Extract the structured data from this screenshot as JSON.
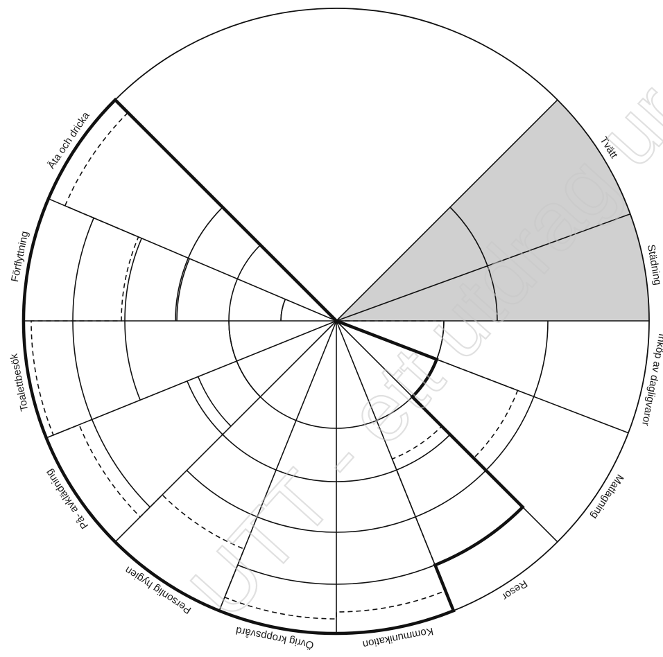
{
  "diagram": {
    "sectors": [
      {
        "id": "tvatt",
        "label": "Tvätt"
      },
      {
        "id": "stadning",
        "label": "Städning"
      },
      {
        "id": "inkop",
        "label": "Inköp av dagligvaror"
      },
      {
        "id": "matlagning",
        "label": "Matlagning"
      },
      {
        "id": "resor",
        "label": "Resor"
      },
      {
        "id": "kommunikation",
        "label": "Kommunikation"
      },
      {
        "id": "ovrig",
        "label": "Övrig kroppsvård"
      },
      {
        "id": "hygien",
        "label": "Personlig hygien"
      },
      {
        "id": "pa-av",
        "label": "På- avklädning"
      },
      {
        "id": "toalett",
        "label": "Toalettbesök"
      },
      {
        "id": "forflyttning",
        "label": "Förflyttning"
      },
      {
        "id": "ata",
        "label": "Äta och dricka"
      }
    ],
    "shaded_sectors": [
      "tvatt",
      "stadning"
    ],
    "colors": {
      "line": "#111111",
      "shade": "#d0d0d0",
      "watermark": "#c8c8c8"
    }
  },
  "watermark": {
    "text": "UTT - ett utdrag ur manual"
  }
}
